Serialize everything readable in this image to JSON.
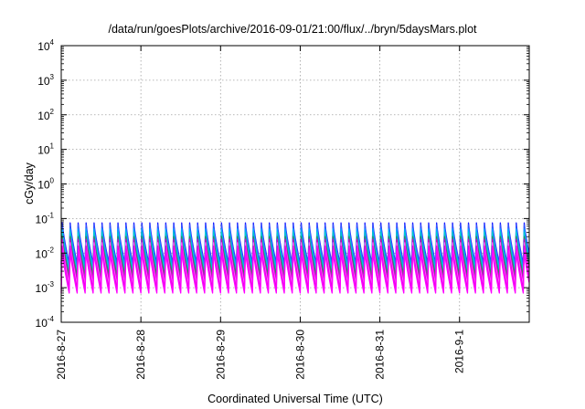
{
  "chart_data": {
    "type": "line",
    "title": "/data/run/goesPlots/archive/2016-09-01/21:00/flux/../bryn/5daysMars.plot",
    "xlabel": "Coordinated Universal Time (UTC)",
    "ylabel": "cGy/day",
    "yscale": "log",
    "ylim": [
      0.0001,
      10000
    ],
    "xlim": [
      "2016-08-27",
      "2016-09-01 21:00"
    ],
    "grid": true,
    "x_tick_labels": [
      "2016-8-27",
      "2016-8-28",
      "2016-8-29",
      "2016-8-30",
      "2016-8-31",
      "2016-9-1"
    ],
    "y_ticks": [
      {
        "base": "10",
        "exp": "-4"
      },
      {
        "base": "10",
        "exp": "-3"
      },
      {
        "base": "10",
        "exp": "-2"
      },
      {
        "base": "10",
        "exp": "-1"
      },
      {
        "base": "10",
        "exp": "0"
      },
      {
        "base": "10",
        "exp": "1"
      },
      {
        "base": "10",
        "exp": "2"
      },
      {
        "base": "10",
        "exp": "3"
      },
      {
        "base": "10",
        "exp": "4"
      }
    ],
    "oscillation_period_hours": 2.4,
    "series": [
      {
        "color": "#ff00ff",
        "min": 0.0007,
        "max": 0.012
      },
      {
        "color": "#e600e6",
        "min": 0.0009,
        "max": 0.016
      },
      {
        "color": "#ff66ff",
        "min": 0.0012,
        "max": 0.02
      },
      {
        "color": "#cc00cc",
        "min": 0.0016,
        "max": 0.025
      },
      {
        "color": "#2e8b57",
        "min": 0.0022,
        "max": 0.03
      },
      {
        "color": "#00cccc",
        "min": 0.0028,
        "max": 0.04
      },
      {
        "color": "#00aaff",
        "min": 0.0035,
        "max": 0.05
      },
      {
        "color": "#3355ff",
        "min": 0.0045,
        "max": 0.065
      },
      {
        "color": "#1a1aff",
        "min": 0.005,
        "max": 0.075
      }
    ]
  }
}
